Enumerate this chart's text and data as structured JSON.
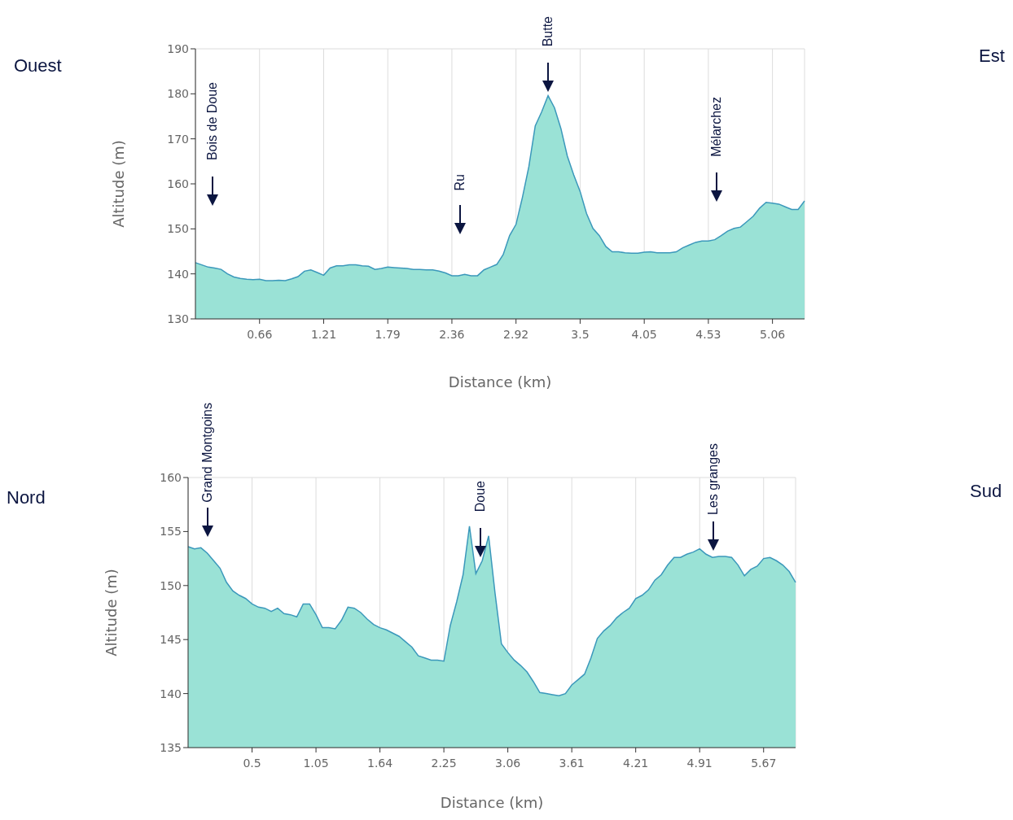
{
  "chart_data": [
    {
      "type": "area",
      "xlabel": "Distance (km)",
      "ylabel": "Altitude (m)",
      "ylim": [
        130,
        190
      ],
      "yticks": [
        130,
        140,
        150,
        160,
        170,
        180,
        190
      ],
      "grid": true,
      "legend": false,
      "categories": [
        null,
        null,
        null,
        null,
        null,
        null,
        null,
        null,
        null,
        null,
        "0.66",
        null,
        null,
        null,
        null,
        null,
        null,
        null,
        null,
        null,
        "1.21",
        null,
        null,
        null,
        null,
        null,
        null,
        null,
        null,
        null,
        "1.79",
        null,
        null,
        null,
        null,
        null,
        null,
        null,
        null,
        null,
        "2.36",
        null,
        null,
        null,
        null,
        null,
        null,
        null,
        null,
        null,
        "2.92",
        null,
        null,
        null,
        null,
        null,
        null,
        null,
        null,
        null,
        "3.5",
        null,
        null,
        null,
        null,
        null,
        null,
        null,
        null,
        null,
        "4.05",
        null,
        null,
        null,
        null,
        null,
        null,
        null,
        null,
        null,
        "4.53",
        null,
        null,
        null,
        null,
        null,
        null,
        null,
        null,
        null,
        "5.06",
        null,
        null,
        null,
        null,
        null
      ],
      "series": [
        {
          "color": "#9ae2d6",
          "values": [
            142.5,
            142,
            141.5,
            141.3,
            141,
            140,
            139.3,
            139,
            138.8,
            138.7,
            138.8,
            138.5,
            138.5,
            138.6,
            138.5,
            138.9,
            139.4,
            140.6,
            140.9,
            140.3,
            139.7,
            141.3,
            141.8,
            141.8,
            142,
            142,
            141.8,
            141.7,
            141,
            141.2,
            141.5,
            141.4,
            141.3,
            141.2,
            141,
            141,
            140.9,
            140.9,
            140.6,
            140.2,
            139.6,
            139.6,
            139.9,
            139.6,
            139.6,
            140.9,
            141.5,
            142.1,
            144.3,
            148.5,
            151,
            157,
            163.8,
            172.9,
            176,
            179.6,
            176.9,
            172.3,
            166.2,
            162,
            158.3,
            153.4,
            150.1,
            148.5,
            146.1,
            144.9,
            144.9,
            144.7,
            144.6,
            144.6,
            144.8,
            144.9,
            144.7,
            144.7,
            144.7,
            144.9,
            145.8,
            146.4,
            147,
            147.3,
            147.3,
            147.6,
            148.5,
            149.5,
            150.1,
            150.4,
            151.6,
            152.8,
            154.6,
            155.9,
            155.7,
            155.5,
            154.9,
            154.3,
            154.3,
            156.2
          ]
        }
      ],
      "annotations": [
        "Ouest",
        "Est",
        "Bois de Doue",
        "Ru",
        "Butte",
        "Mélarchez"
      ]
    },
    {
      "type": "area",
      "xlabel": "Distance (km)",
      "ylabel": "Altitude (m)",
      "ylim": [
        135,
        160
      ],
      "yticks": [
        135,
        140,
        145,
        150,
        155,
        160
      ],
      "grid": true,
      "legend": false,
      "categories": [
        null,
        null,
        null,
        null,
        null,
        null,
        null,
        null,
        null,
        null,
        "0.5",
        null,
        null,
        null,
        null,
        null,
        null,
        null,
        null,
        null,
        "1.05",
        null,
        null,
        null,
        null,
        null,
        null,
        null,
        null,
        null,
        "1.64",
        null,
        null,
        null,
        null,
        null,
        null,
        null,
        null,
        null,
        "2.25",
        null,
        null,
        null,
        null,
        null,
        null,
        null,
        null,
        null,
        "3.06",
        null,
        null,
        null,
        null,
        null,
        null,
        null,
        null,
        null,
        "3.61",
        null,
        null,
        null,
        null,
        null,
        null,
        null,
        null,
        null,
        "4.21",
        null,
        null,
        null,
        null,
        null,
        null,
        null,
        null,
        null,
        "4.91",
        null,
        null,
        null,
        null,
        null,
        null,
        null,
        null,
        null,
        "5.67",
        null,
        null,
        null,
        null,
        null
      ],
      "series": [
        {
          "color": "#9ae2d6",
          "values": [
            153.6,
            153.4,
            153.5,
            153,
            152.3,
            151.6,
            150.3,
            149.5,
            149.1,
            148.8,
            148.3,
            148,
            147.9,
            147.6,
            147.9,
            147.4,
            147.3,
            147.1,
            148.3,
            148.3,
            147.3,
            146.1,
            146.1,
            146,
            146.8,
            148,
            147.9,
            147.5,
            146.9,
            146.4,
            146.1,
            145.9,
            145.6,
            145.3,
            144.8,
            144.3,
            143.5,
            143.3,
            143.1,
            143.1,
            143,
            146.3,
            148.5,
            151,
            155.5,
            151.1,
            152.3,
            154.6,
            149.3,
            144.6,
            143.8,
            143.1,
            142.6,
            142,
            141.1,
            140.1,
            140,
            139.9,
            139.8,
            140,
            140.8,
            141.3,
            141.8,
            143.3,
            145.1,
            145.8,
            146.3,
            147,
            147.5,
            147.9,
            148.8,
            149.1,
            149.6,
            150.5,
            151,
            151.9,
            152.6,
            152.6,
            152.9,
            153.1,
            153.4,
            152.9,
            152.6,
            152.7,
            152.7,
            152.6,
            151.9,
            150.9,
            151.5,
            151.8,
            152.5,
            152.6,
            152.3,
            151.9,
            151.3,
            150.3
          ]
        }
      ],
      "annotations": [
        "Nord",
        "Sud",
        "Grand Montgoins",
        "Doue",
        "Les granges"
      ]
    }
  ]
}
